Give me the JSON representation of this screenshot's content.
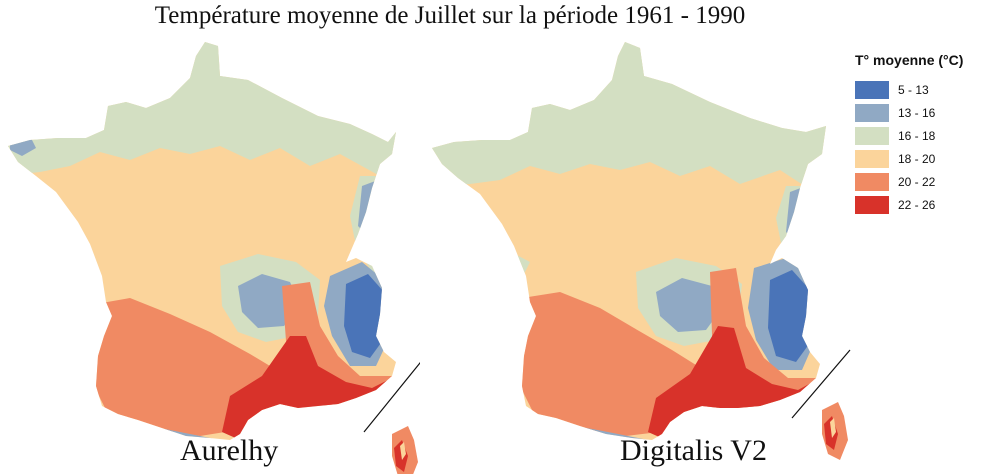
{
  "title": "Température moyenne de Juillet sur la période 1961 - 1990",
  "maps": [
    {
      "label": "Aurelhy"
    },
    {
      "label": "Digitalis V2"
    }
  ],
  "legend": {
    "title": "T° moyenne (°C)",
    "items": [
      {
        "label": "5 - 13",
        "color": "#4a74b8"
      },
      {
        "label": "13 - 16",
        "color": "#90a9c4"
      },
      {
        "label": "16 - 18",
        "color": "#d3dfc2"
      },
      {
        "label": "18 - 20",
        "color": "#fbd49b"
      },
      {
        "label": "20 - 22",
        "color": "#f08a63"
      },
      {
        "label": "22 - 26",
        "color": "#d8322a"
      }
    ]
  }
}
